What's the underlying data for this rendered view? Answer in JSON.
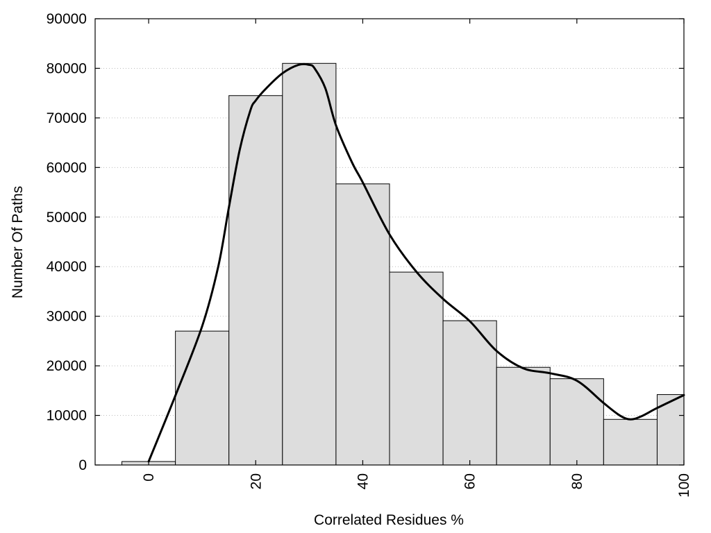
{
  "chart_data": {
    "type": "bar",
    "title": "",
    "xlabel": "Correlated Residues %",
    "ylabel": "Number Of Paths",
    "xlim": [
      -10,
      100
    ],
    "ylim": [
      0,
      90000
    ],
    "x_ticks": [
      0,
      20,
      40,
      60,
      80,
      100
    ],
    "y_ticks": [
      0,
      10000,
      20000,
      30000,
      40000,
      50000,
      60000,
      70000,
      80000,
      90000
    ],
    "grid": "horizontal-dotted",
    "legend": "none",
    "bar_width": 10,
    "bars": [
      {
        "x": 0,
        "value": 700
      },
      {
        "x": 10,
        "value": 27000
      },
      {
        "x": 20,
        "value": 74500
      },
      {
        "x": 30,
        "value": 81000
      },
      {
        "x": 40,
        "value": 56700
      },
      {
        "x": 50,
        "value": 38900
      },
      {
        "x": 60,
        "value": 29100
      },
      {
        "x": 70,
        "value": 19700
      },
      {
        "x": 80,
        "value": 17400
      },
      {
        "x": 90,
        "value": 9200
      },
      {
        "x": 100,
        "value": 14200
      }
    ],
    "curve": {
      "x": [
        0,
        5,
        10,
        13,
        15,
        17,
        19,
        20,
        22,
        25,
        28,
        30,
        31,
        33,
        35,
        38,
        40,
        45,
        50,
        55,
        60,
        65,
        70,
        75,
        80,
        85,
        88,
        90,
        92,
        95,
        100
      ],
      "y": [
        700,
        14000,
        28000,
        40000,
        52000,
        63500,
        71500,
        73500,
        76000,
        79000,
        80700,
        80700,
        80000,
        76000,
        68500,
        61000,
        57000,
        46500,
        39000,
        33500,
        29000,
        23000,
        19500,
        18500,
        17000,
        12500,
        10000,
        9200,
        9800,
        11500,
        14100
      ]
    },
    "colors": {
      "bar_fill": "#dddddd",
      "bar_stroke": "#000000",
      "curve": "#000000",
      "grid": "#bbbbbb"
    }
  }
}
